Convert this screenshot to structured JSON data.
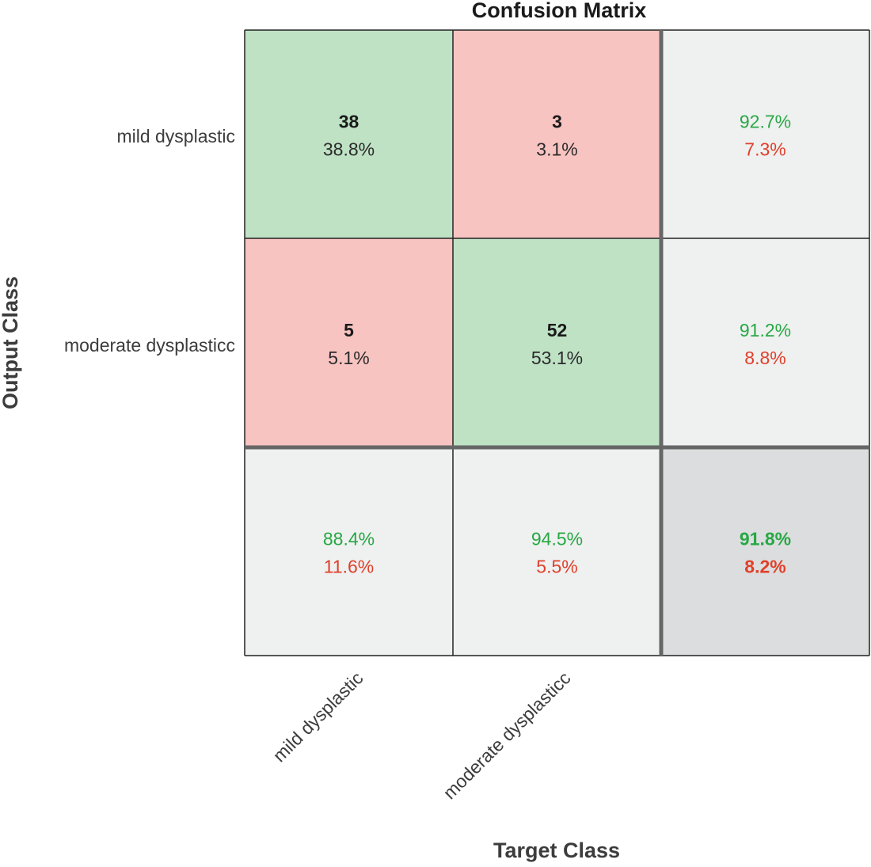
{
  "chart_data": {
    "type": "heatmap",
    "title": "Confusion Matrix",
    "xlabel": "Target Class",
    "ylabel": "Output Class",
    "classes": [
      "mild dysplastic",
      "moderate dysplasticc"
    ],
    "matrix": [
      [
        {
          "count": "38",
          "percent": "38.8%",
          "kind": "correct"
        },
        {
          "count": "3",
          "percent": "3.1%",
          "kind": "error"
        }
      ],
      [
        {
          "count": "5",
          "percent": "5.1%",
          "kind": "error"
        },
        {
          "count": "52",
          "percent": "53.1%",
          "kind": "correct"
        }
      ]
    ],
    "row_summary": [
      {
        "correct": "92.7%",
        "error": "7.3%"
      },
      {
        "correct": "91.2%",
        "error": "8.8%"
      }
    ],
    "column_summary": [
      {
        "correct": "88.4%",
        "error": "11.6%"
      },
      {
        "correct": "94.5%",
        "error": "5.5%"
      }
    ],
    "overall": {
      "correct": "91.8%",
      "error": "8.2%"
    },
    "colors": {
      "correct_fill": "#bfe2c5",
      "error_fill": "#f8c4c1",
      "summary_fill": "#eff0f0",
      "overall_fill": "#dcddde",
      "correct_text": "#27a844",
      "error_text": "#e0402a",
      "count_text": "#1a1a1a",
      "percent_text": "#2b2b2b",
      "label_text": "#3c3c3c",
      "grid_line": "#222222",
      "separator_line": "#666666"
    }
  }
}
